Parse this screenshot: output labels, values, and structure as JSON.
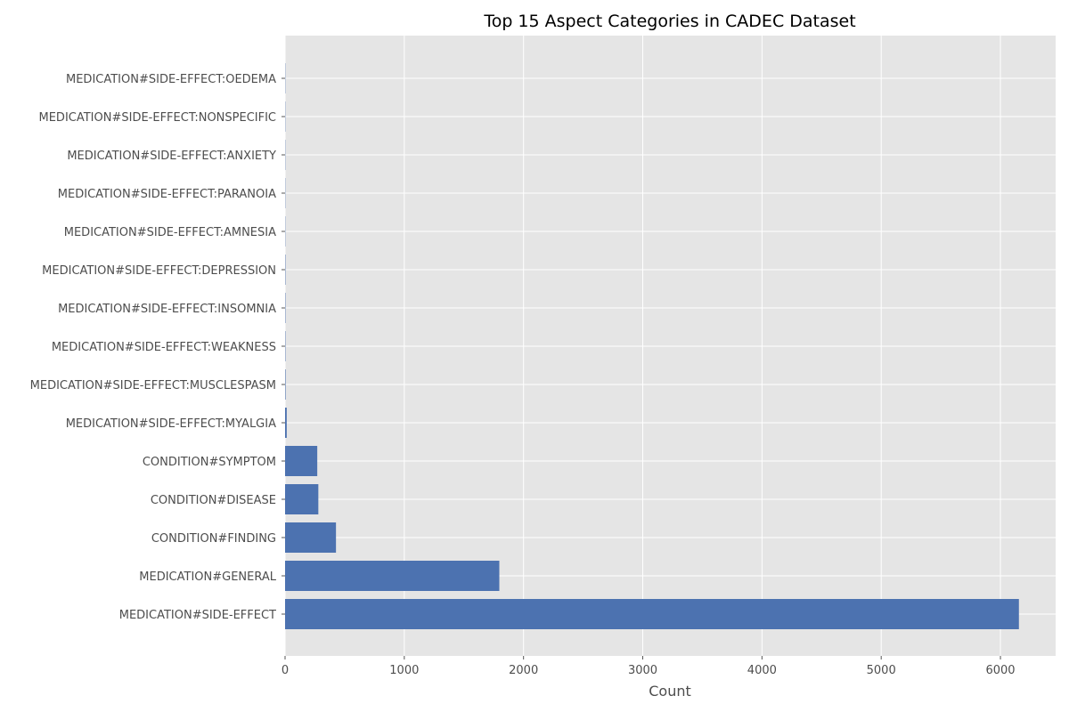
{
  "chart_data": {
    "type": "bar",
    "orientation": "horizontal",
    "title": "Top 15 Aspect Categories in CADEC Dataset",
    "xlabel": "Count",
    "ylabel": "",
    "categories": [
      "MEDICATION#SIDE-EFFECT",
      "MEDICATION#GENERAL",
      "CONDITION#FINDING",
      "CONDITION#DISEASE",
      "CONDITION#SYMPTOM",
      "MEDICATION#SIDE-EFFECT:MYALGIA",
      "MEDICATION#SIDE-EFFECT:MUSCLESPASM",
      "MEDICATION#SIDE-EFFECT:WEAKNESS",
      "MEDICATION#SIDE-EFFECT:INSOMNIA",
      "MEDICATION#SIDE-EFFECT:DEPRESSION",
      "MEDICATION#SIDE-EFFECT:AMNESIA",
      "MEDICATION#SIDE-EFFECT:PARANOIA",
      "MEDICATION#SIDE-EFFECT:ANXIETY",
      "MEDICATION#SIDE-EFFECT:NONSPECIFIC",
      "MEDICATION#SIDE-EFFECT:OEDEMA"
    ],
    "values": [
      6155,
      1797,
      427,
      279,
      270,
      14,
      4,
      3,
      3,
      3,
      2,
      2,
      2,
      2,
      2
    ],
    "xlim": [
      0,
      6463
    ],
    "xticks": [
      0,
      1000,
      2000,
      3000,
      4000,
      5000,
      6000
    ],
    "grid": true,
    "colors": {
      "bar": "#4c72b0",
      "plot_background": "#e5e5e5",
      "grid": "#ffffff",
      "tick_text": "#4d4d4d",
      "title_text": "#000000"
    }
  }
}
